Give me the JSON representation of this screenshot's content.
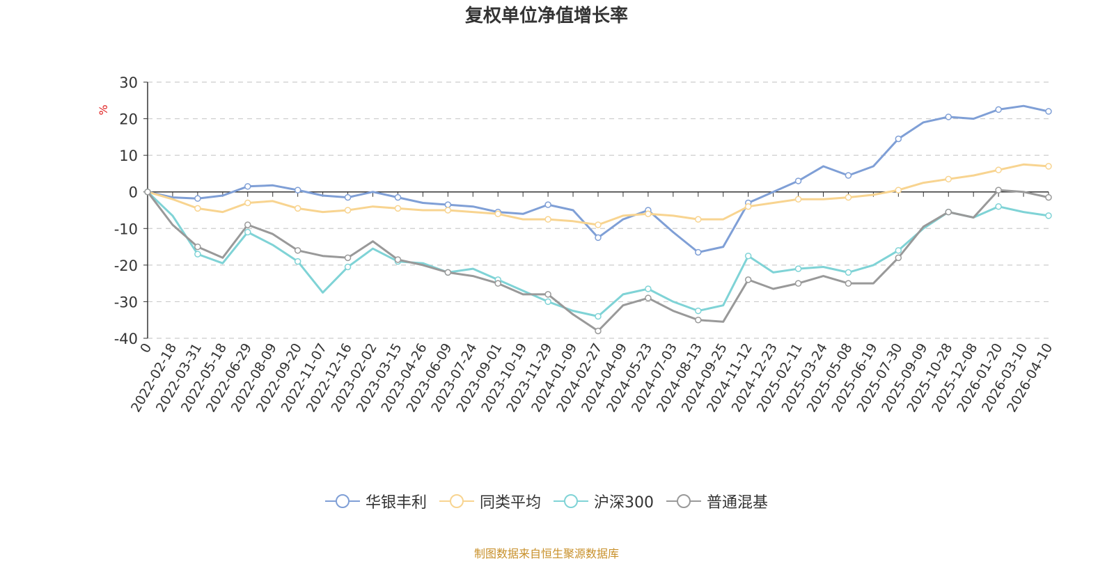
{
  "chart_data": {
    "type": "line",
    "title": "复权单位净值增长率",
    "ylabel": "%",
    "xlabel": "",
    "ylim": [
      -40,
      30
    ],
    "yticks": [
      30,
      20,
      10,
      0,
      -10,
      -20,
      -30,
      -40
    ],
    "grid": true,
    "legend_position": "bottom",
    "categories": [
      "0",
      "2022-02-18",
      "2022-03-31",
      "2022-05-18",
      "2022-06-29",
      "2022-08-09",
      "2022-09-20",
      "2022-11-07",
      "2022-12-16",
      "2023-02-02",
      "2023-03-15",
      "2023-04-26",
      "2023-06-09",
      "2023-07-24",
      "2023-09-01",
      "2023-10-19",
      "2023-11-29",
      "2024-01-09",
      "2024-02-27",
      "2024-04-09",
      "2024-05-23",
      "2024-07-03",
      "2024-08-13",
      "2024-09-25",
      "2024-11-12",
      "2024-12-23",
      "2025-02-11",
      "2025-03-24",
      "2025-05-08",
      "2025-06-19",
      "2025-07-30",
      "2025-09-09",
      "2025-10-28",
      "2025-12-08",
      "2026-01-20",
      "2026-03-10",
      "2026-04-10"
    ],
    "series": [
      {
        "name": "华银丰利",
        "color": "#7f9fd6",
        "values": [
          0,
          -1.5,
          -1.8,
          -1.0,
          1.5,
          1.8,
          0.5,
          -1.0,
          -1.5,
          0,
          -1.5,
          -3.0,
          -3.5,
          -4.0,
          -5.5,
          -6.0,
          -3.5,
          -5.0,
          -12.5,
          -7.5,
          -5.0,
          -11.0,
          -16.5,
          -15.0,
          -3.0,
          0,
          3.0,
          7.0,
          4.5,
          7.0,
          14.5,
          19.0,
          20.5,
          20.0,
          22.5,
          23.5,
          22.0
        ]
      },
      {
        "name": "同类平均",
        "color": "#f8d490",
        "values": [
          0,
          -2.0,
          -4.5,
          -5.5,
          -3.0,
          -2.5,
          -4.5,
          -5.5,
          -5.0,
          -4.0,
          -4.5,
          -5.0,
          -5.0,
          -5.5,
          -6.0,
          -7.5,
          -7.5,
          -8.0,
          -9.0,
          -6.5,
          -6.0,
          -6.5,
          -7.5,
          -7.5,
          -4.0,
          -3.0,
          -2.0,
          -2.0,
          -1.5,
          -0.8,
          0.5,
          2.5,
          3.5,
          4.5,
          6.0,
          7.5,
          7.0
        ]
      },
      {
        "name": "沪深300",
        "color": "#7fd3d6",
        "values": [
          0,
          -6.5,
          -17.0,
          -19.5,
          -11.0,
          -14.5,
          -19.0,
          -27.5,
          -20.5,
          -15.5,
          -19.0,
          -19.5,
          -22.0,
          -21.0,
          -24.0,
          -27.0,
          -30.0,
          -32.5,
          -34.0,
          -28.0,
          -26.5,
          -30.0,
          -32.5,
          -31.0,
          -17.5,
          -22.0,
          -21.0,
          -20.5,
          -22.0,
          -20.0,
          -16.0,
          -10.0,
          -5.5,
          -7.0,
          -4.0,
          -5.5,
          -6.5
        ]
      },
      {
        "name": "普通混基",
        "color": "#999999",
        "values": [
          0,
          -9.0,
          -15.0,
          -18.0,
          -9.0,
          -11.5,
          -16.0,
          -17.5,
          -18.0,
          -13.5,
          -18.5,
          -20.0,
          -22.0,
          -23.0,
          -25.0,
          -28.0,
          -28.0,
          -33.5,
          -38.0,
          -31.0,
          -29.0,
          -32.5,
          -35.0,
          -35.5,
          -24.0,
          -26.5,
          -25.0,
          -23.0,
          -25.0,
          -25.0,
          -18.0,
          -9.5,
          -5.5,
          -7.0,
          0.5,
          0,
          -1.5
        ]
      }
    ]
  },
  "legend": {
    "items": [
      {
        "label": "华银丰利",
        "color": "#7f9fd6"
      },
      {
        "label": "同类平均",
        "color": "#f8d490"
      },
      {
        "label": "沪深300",
        "color": "#7fd3d6"
      },
      {
        "label": "普通混基",
        "color": "#999999"
      }
    ]
  },
  "footer": {
    "source": "制图数据来自恒生聚源数据库"
  }
}
